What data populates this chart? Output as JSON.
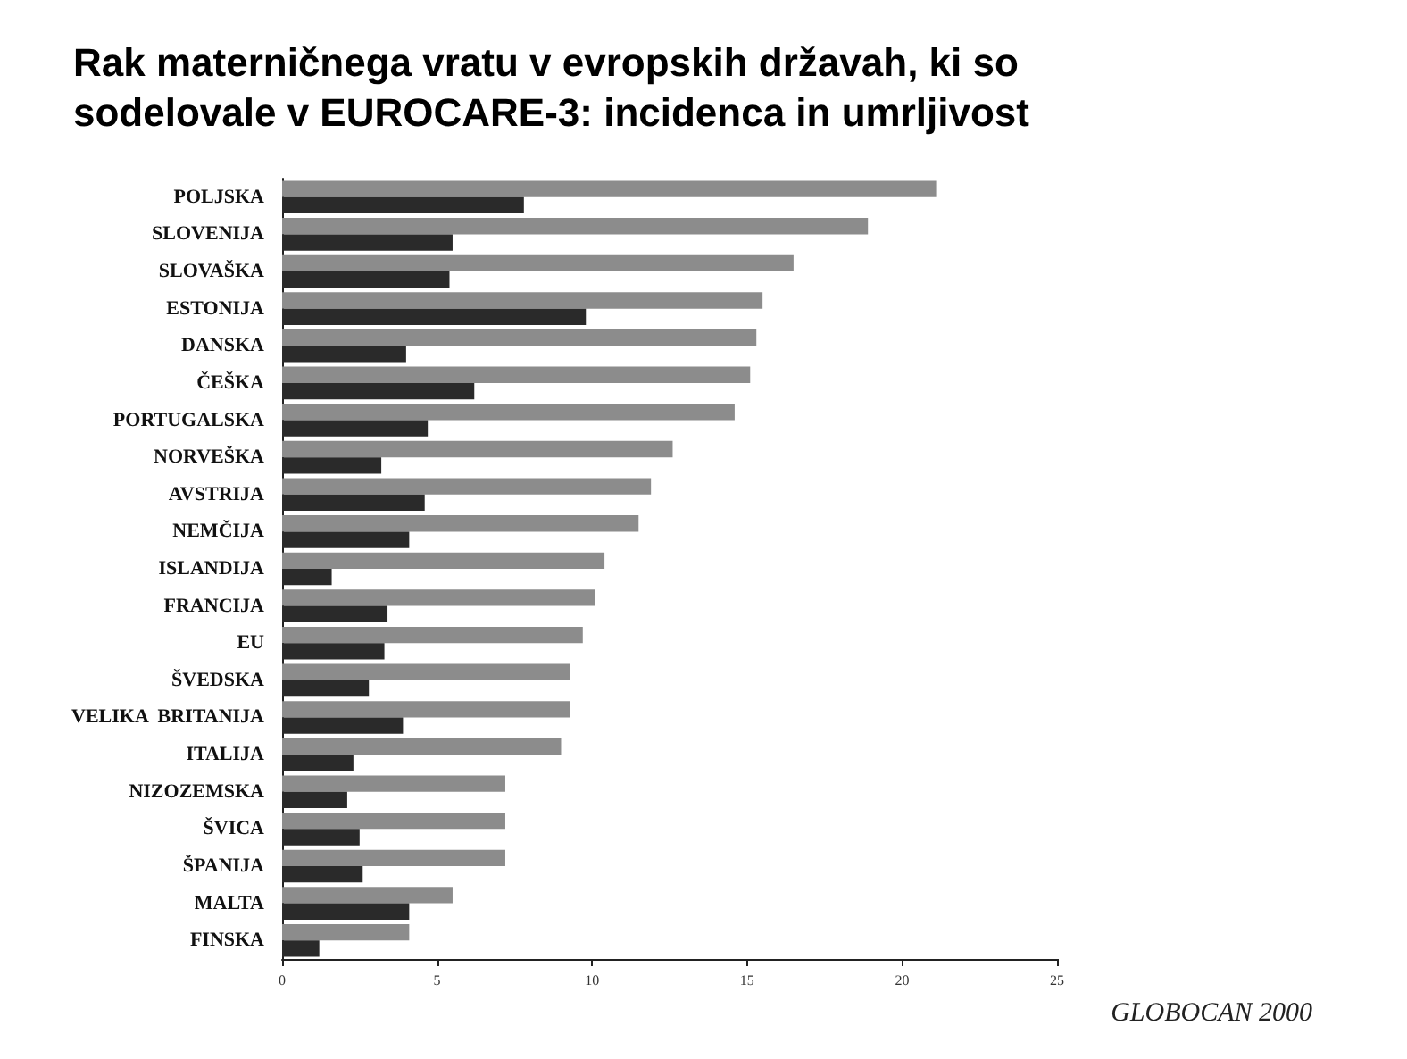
{
  "chart_data": {
    "type": "bar",
    "orientation": "horizontal",
    "title": "Rak materničnega vratu v evropskih državah, ki so sodelovale v EUROCARE-3: incidenca in umrljivost",
    "categories": [
      "POLJSKA",
      "SLOVENIJA",
      "SLOVAŠKA",
      "ESTONIJA",
      "DANSKA",
      "ČEŠKA",
      "PORTUGALSKA",
      "NORVEŠKA",
      "AVSTRIJA",
      "NEMČIJA",
      "ISLANDIJA",
      "FRANCIJA",
      "EU",
      "ŠVEDSKA",
      "VELIKA  BRITANIJA",
      "ITALIJA",
      "NIZOZEMSKA",
      "ŠVICA",
      "ŠPANIJA",
      "MALTA",
      "FINSKA"
    ],
    "series": [
      {
        "color": "#8c8c8c",
        "values": [
          21.1,
          18.9,
          16.5,
          15.5,
          15.3,
          15.1,
          14.6,
          12.6,
          11.9,
          11.5,
          10.4,
          10.1,
          9.7,
          9.3,
          9.3,
          9.0,
          7.2,
          7.2,
          7.2,
          5.5,
          4.1
        ]
      },
      {
        "color": "#2a2a2a",
        "values": [
          7.8,
          5.5,
          5.4,
          9.8,
          4.0,
          6.2,
          4.7,
          3.2,
          4.6,
          4.1,
          1.6,
          3.4,
          3.3,
          2.8,
          3.9,
          2.3,
          2.1,
          2.5,
          2.6,
          4.1,
          1.2
        ]
      }
    ],
    "xlim": [
      0,
      25
    ],
    "xticks": [
      0,
      5,
      10,
      15,
      20,
      25
    ],
    "grid": false,
    "annotations": [
      "GLOBOCAN 2000"
    ]
  }
}
